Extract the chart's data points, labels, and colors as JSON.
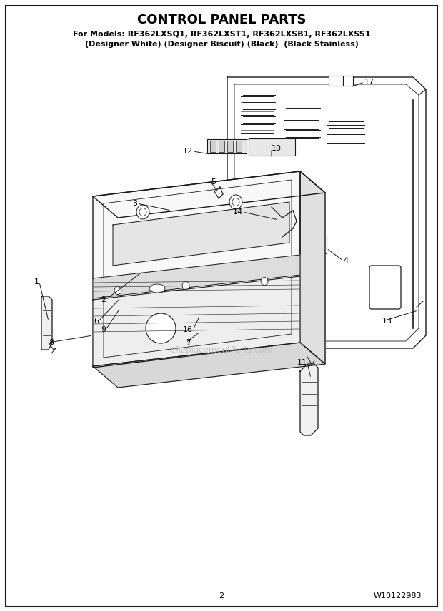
{
  "title": "CONTROL PANEL PARTS",
  "subtitle_line1": "For Models: RF362LXSQ1, RF362LXST1, RF362LXSB1, RF362LXSS1",
  "subtitle_line2": "(Designer White) (Designer Biscuit) (Black)  (Black Stainless)",
  "page_number": "2",
  "part_number": "W10122983",
  "watermark": "eReplacementParts.com",
  "background_color": "#ffffff",
  "fig_width": 6.2,
  "fig_height": 8.56,
  "dpi": 100,
  "title_fontsize": 13,
  "subtitle_fontsize": 8.0,
  "border_color": "#000000",
  "label_fontsize": 8,
  "footer_fontsize": 8
}
